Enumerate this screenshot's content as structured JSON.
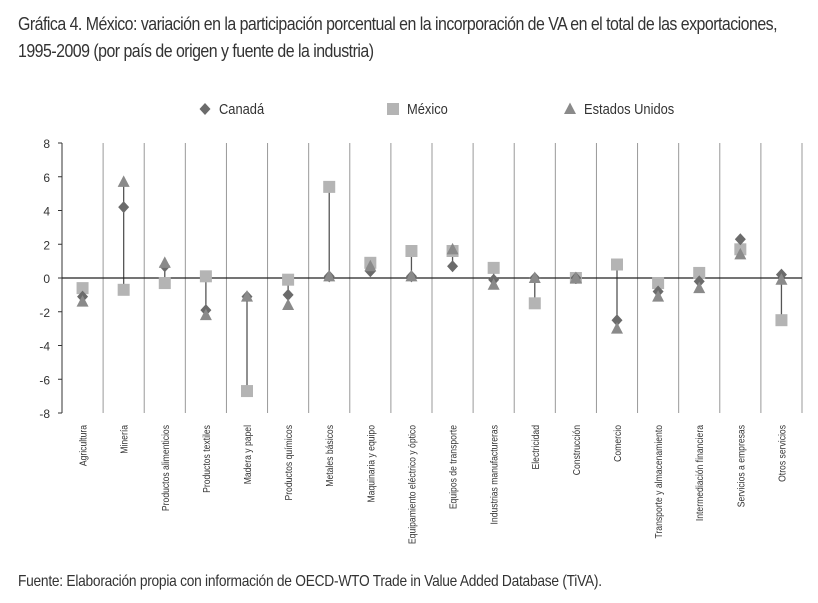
{
  "title": "Gráfica 4. México: variación en la participación porcentual en la incorporación de VA en el total de las exportaciones, 1995-2009 (por país de origen y fuente de la industria)",
  "source": "Fuente: Elaboración propia con información de OECD-WTO Trade in Value Added Database (TiVA).",
  "chart_data": {
    "type": "scatter",
    "title": "Gráfica 4. México: variación en la participación porcentual en la incorporación de VA en el total de las exportaciones, 1995-2009 (por país de origen y fuente de la industria)",
    "xlabel": "",
    "ylabel": "",
    "ylim": [
      -8,
      8
    ],
    "yticks": [
      8,
      6,
      4,
      2,
      0,
      -2,
      -4,
      -6,
      -8
    ],
    "grid": "vertical separators",
    "legend": "top",
    "categories": [
      "Agricultura",
      "Minería",
      "Productos alimenticios",
      "Productos textiles",
      "Madera y papel",
      "Productos químicos",
      "Metales básicos",
      "Maquinaria y equipo",
      "Equipamiento eléctrico y óptico",
      "Equipos de transporte",
      "Industrias manufactureras",
      "Electricidad",
      "Construcción",
      "Comercio",
      "Transporte y almacenamiento",
      "Intermediación financiera",
      "Servicios a empresas",
      "Otros servicios"
    ],
    "series": [
      {
        "name": "Canadá",
        "marker": "diamond",
        "color": "#6b6b6b",
        "values": [
          -1.1,
          4.2,
          0.7,
          -1.9,
          -1.1,
          -1.0,
          0.1,
          0.4,
          0.1,
          0.7,
          -0.1,
          0.0,
          0.0,
          -2.5,
          -0.8,
          -0.2,
          2.3,
          0.2
        ]
      },
      {
        "name": "México",
        "marker": "square",
        "color": "#b4b4b4",
        "values": [
          -0.6,
          -0.7,
          -0.3,
          0.1,
          -6.7,
          -0.1,
          5.4,
          0.9,
          1.6,
          1.6,
          0.6,
          -1.5,
          0.0,
          0.8,
          -0.3,
          0.3,
          1.7,
          -2.5
        ]
      },
      {
        "name": "Estados Unidos",
        "marker": "triangle",
        "color": "#8a8a8a",
        "values": [
          -1.4,
          5.7,
          0.9,
          -2.2,
          -1.1,
          -1.6,
          0.1,
          0.7,
          0.1,
          1.7,
          -0.4,
          0.0,
          0.0,
          -3.0,
          -1.1,
          -0.6,
          1.4,
          -0.1
        ]
      }
    ]
  }
}
